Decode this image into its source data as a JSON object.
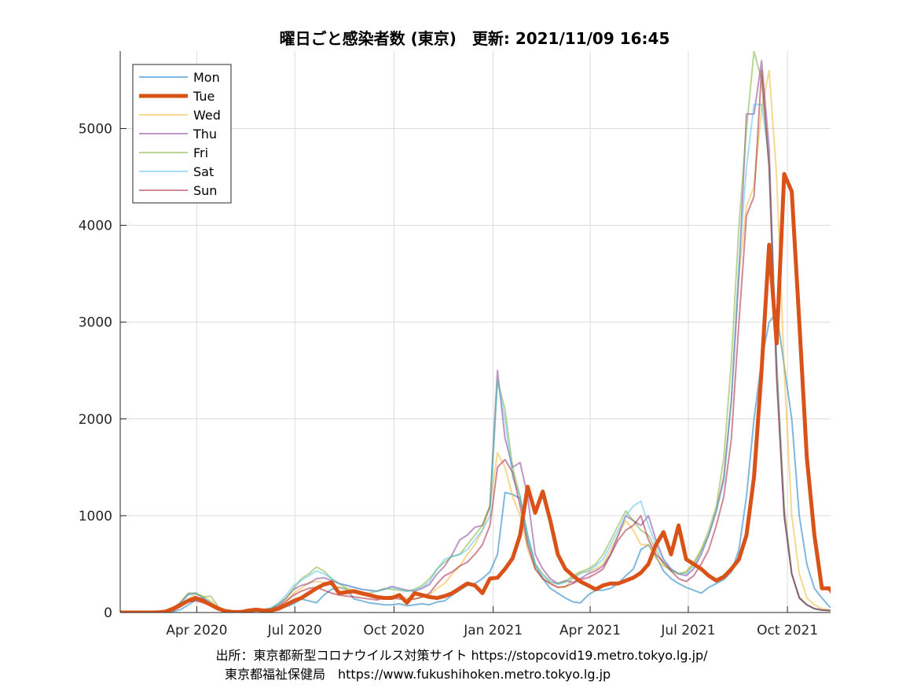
{
  "chart_data": {
    "type": "line",
    "title": "曜日ごと感染者数 (東京)　更新: 2021/11/09 16:45",
    "xlabel": "",
    "ylabel": "",
    "x_start": "2020-01-21",
    "x_step_days": 7,
    "xlim": [
      "2020-01-21",
      "2021-11-10"
    ],
    "ylim": [
      0,
      5800
    ],
    "yticks": [
      0,
      1000,
      2000,
      3000,
      4000,
      5000
    ],
    "xticks": [
      {
        "date": "2020-04-01",
        "label": "Apr 2020"
      },
      {
        "date": "2020-07-01",
        "label": "Jul 2020"
      },
      {
        "date": "2020-10-01",
        "label": "Oct 2020"
      },
      {
        "date": "2021-01-01",
        "label": "Jan 2021"
      },
      {
        "date": "2021-04-01",
        "label": "Apr 2021"
      },
      {
        "date": "2021-07-01",
        "label": "Jul 2021"
      },
      {
        "date": "2021-10-01",
        "label": "Oct 2021"
      }
    ],
    "grid": true,
    "legend_position": "top-left",
    "series": [
      {
        "name": "Mon",
        "color": "#0072BD",
        "width": 2,
        "opacity": 0.5,
        "values": [
          0,
          0,
          0,
          0,
          0,
          2,
          5,
          10,
          30,
          78,
          130,
          150,
          100,
          45,
          20,
          10,
          5,
          10,
          15,
          20,
          25,
          35,
          60,
          90,
          140,
          120,
          100,
          180,
          240,
          260,
          240,
          140,
          120,
          100,
          90,
          80,
          80,
          90,
          70,
          80,
          90,
          80,
          110,
          120,
          180,
          230,
          280,
          300,
          350,
          420,
          600,
          1240,
          1220,
          1180,
          800,
          500,
          350,
          250,
          200,
          150,
          110,
          100,
          180,
          230,
          230,
          250,
          300,
          380,
          450,
          650,
          700,
          580,
          430,
          350,
          300,
          260,
          230,
          200,
          260,
          300,
          340,
          420,
          650,
          1200,
          2000,
          2600,
          3000,
          3100,
          2550,
          2000,
          1000,
          500,
          250,
          150,
          60,
          30,
          20,
          15,
          10,
          10
        ]
      },
      {
        "name": "Wed",
        "color": "#EDB120",
        "width": 2,
        "opacity": 0.5,
        "values": [
          0,
          0,
          0,
          0,
          0,
          3,
          8,
          20,
          60,
          140,
          190,
          170,
          120,
          60,
          20,
          10,
          8,
          15,
          20,
          30,
          40,
          60,
          110,
          200,
          250,
          310,
          320,
          310,
          280,
          260,
          240,
          200,
          180,
          170,
          160,
          150,
          170,
          160,
          150,
          140,
          160,
          180,
          250,
          300,
          400,
          480,
          600,
          700,
          850,
          1100,
          1650,
          1500,
          1200,
          1000,
          650,
          450,
          350,
          300,
          260,
          260,
          350,
          420,
          420,
          450,
          500,
          650,
          800,
          950,
          850,
          700,
          700,
          560,
          480,
          450,
          400,
          420,
          520,
          650,
          800,
          1050,
          1400,
          2200,
          3500,
          4200,
          4400,
          5200,
          5600,
          4500,
          2500,
          1000,
          400,
          150,
          80,
          40,
          25,
          20,
          15
        ]
      },
      {
        "name": "Thu",
        "color": "#7E2F8E",
        "width": 2,
        "opacity": 0.5,
        "values": [
          0,
          0,
          0,
          0,
          0,
          2,
          10,
          40,
          100,
          190,
          200,
          150,
          80,
          40,
          20,
          10,
          10,
          20,
          25,
          30,
          40,
          80,
          150,
          240,
          280,
          300,
          350,
          360,
          330,
          300,
          280,
          260,
          240,
          230,
          220,
          240,
          270,
          250,
          230,
          220,
          250,
          290,
          400,
          480,
          600,
          750,
          800,
          880,
          900,
          1100,
          2500,
          1800,
          1500,
          1550,
          1200,
          600,
          450,
          350,
          300,
          330,
          310,
          350,
          400,
          430,
          480,
          600,
          800,
          1000,
          950,
          900,
          1000,
          750,
          550,
          450,
          400,
          380,
          450,
          600,
          800,
          1050,
          1400,
          2200,
          3500,
          5150,
          5150,
          5700,
          4800,
          2500,
          1000,
          400,
          150,
          80,
          40,
          25,
          20,
          15,
          10
        ]
      },
      {
        "name": "Fri",
        "color": "#77AC30",
        "width": 2,
        "opacity": 0.5,
        "values": [
          0,
          0,
          0,
          0,
          0,
          3,
          10,
          40,
          110,
          200,
          200,
          160,
          170,
          60,
          20,
          10,
          8,
          15,
          25,
          30,
          40,
          90,
          150,
          250,
          350,
          400,
          470,
          430,
          350,
          300,
          250,
          230,
          200,
          200,
          220,
          250,
          240,
          230,
          220,
          240,
          280,
          350,
          450,
          520,
          580,
          600,
          700,
          800,
          900,
          1100,
          2400,
          2100,
          1500,
          1200,
          750,
          500,
          400,
          320,
          300,
          320,
          380,
          420,
          450,
          500,
          600,
          750,
          900,
          1050,
          950,
          850,
          800,
          650,
          500,
          430,
          400,
          420,
          500,
          650,
          850,
          1100,
          1600,
          2600,
          4000,
          5000,
          5800,
          5500,
          4600,
          2600,
          1100,
          400,
          160,
          80,
          40,
          25,
          20,
          15,
          10
        ]
      },
      {
        "name": "Sat",
        "color": "#4DBEEE",
        "width": 2,
        "opacity": 0.5,
        "values": [
          0,
          0,
          0,
          0,
          0,
          2,
          8,
          30,
          90,
          180,
          200,
          150,
          100,
          50,
          20,
          10,
          8,
          12,
          20,
          30,
          50,
          100,
          180,
          280,
          330,
          380,
          430,
          400,
          350,
          300,
          280,
          260,
          240,
          230,
          220,
          240,
          260,
          240,
          220,
          230,
          260,
          320,
          450,
          550,
          580,
          600,
          650,
          750,
          850,
          1000,
          2400,
          2000,
          1400,
          1200,
          750,
          480,
          380,
          320,
          290,
          310,
          360,
          400,
          430,
          480,
          550,
          700,
          850,
          1000,
          1100,
          1150,
          900,
          700,
          550,
          450,
          400,
          400,
          480,
          620,
          800,
          1050,
          1350,
          2200,
          3600,
          4600,
          5250,
          5250,
          4700,
          2500,
          1000,
          400,
          150,
          80,
          40,
          25,
          20,
          15,
          10
        ]
      },
      {
        "name": "Sun",
        "color": "#A2142F",
        "width": 2,
        "opacity": 0.5,
        "values": [
          0,
          0,
          0,
          0,
          0,
          2,
          5,
          20,
          60,
          110,
          120,
          100,
          70,
          30,
          15,
          8,
          8,
          12,
          18,
          25,
          35,
          60,
          120,
          180,
          220,
          250,
          260,
          230,
          200,
          180,
          170,
          160,
          150,
          140,
          130,
          150,
          150,
          140,
          130,
          140,
          160,
          200,
          300,
          380,
          420,
          480,
          520,
          600,
          700,
          900,
          1500,
          1580,
          1450,
          1100,
          700,
          450,
          350,
          300,
          260,
          270,
          300,
          340,
          360,
          400,
          450,
          600,
          750,
          850,
          900,
          1000,
          750,
          600,
          520,
          430,
          350,
          320,
          380,
          500,
          650,
          900,
          1200,
          1800,
          3000,
          4100,
          4300,
          5600,
          4600,
          2400,
          1000,
          400,
          150,
          80,
          40,
          25,
          20,
          15,
          10
        ]
      },
      {
        "name": "Tue",
        "color": "#D95319",
        "width": 5,
        "opacity": 1,
        "values": [
          0,
          0,
          0,
          0,
          0,
          2,
          10,
          40,
          80,
          120,
          150,
          120,
          80,
          40,
          15,
          5,
          5,
          20,
          30,
          20,
          20,
          40,
          80,
          120,
          150,
          200,
          250,
          290,
          310,
          200,
          210,
          220,
          200,
          180,
          160,
          150,
          150,
          180,
          100,
          200,
          180,
          160,
          150,
          170,
          200,
          250,
          300,
          280,
          200,
          350,
          360,
          450,
          560,
          800,
          1300,
          1030,
          1250,
          950,
          600,
          450,
          380,
          320,
          280,
          240,
          280,
          300,
          300,
          330,
          360,
          410,
          500,
          700,
          830,
          600,
          900,
          550,
          500,
          450,
          380,
          330,
          370,
          450,
          550,
          800,
          1400,
          2500,
          3800,
          2780,
          4530,
          4350,
          3000,
          1600,
          800,
          250,
          250,
          120,
          60,
          30,
          20,
          15,
          15
        ]
      }
    ]
  },
  "legend": [
    {
      "name": "Mon",
      "color": "#0072BD",
      "width": 2,
      "opacity": 0.5
    },
    {
      "name": "Tue",
      "color": "#D95319",
      "width": 5,
      "opacity": 1
    },
    {
      "name": "Wed",
      "color": "#EDB120",
      "width": 2,
      "opacity": 0.5
    },
    {
      "name": "Thu",
      "color": "#7E2F8E",
      "width": 2,
      "opacity": 0.5
    },
    {
      "name": "Fri",
      "color": "#77AC30",
      "width": 2,
      "opacity": 0.5
    },
    {
      "name": "Sat",
      "color": "#4DBEEE",
      "width": 2,
      "opacity": 0.5
    },
    {
      "name": "Sun",
      "color": "#A2142F",
      "width": 2,
      "opacity": 0.5
    }
  ],
  "footer": {
    "line1": "出所：東京都新型コロナウイルス対策サイト https://stopcovid19.metro.tokyo.lg.jp/",
    "line2": "東京都福祉保健局　https://www.fukushihoken.metro.tokyo.lg.jp"
  }
}
